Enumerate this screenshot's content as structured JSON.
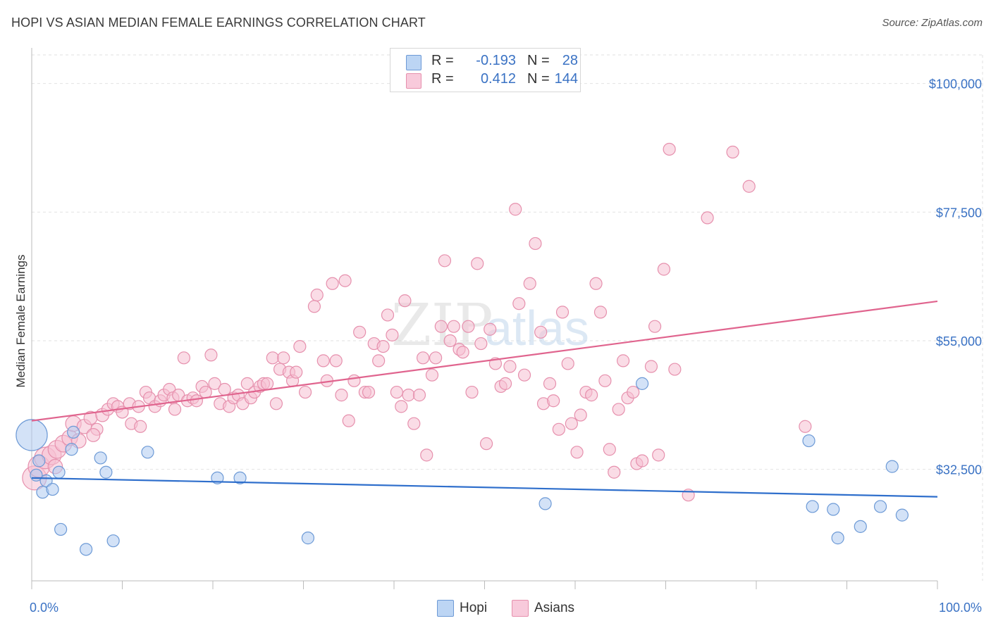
{
  "header": {
    "title": "HOPI VS ASIAN MEDIAN FEMALE EARNINGS CORRELATION CHART",
    "source": "Source: ZipAtlas.com"
  },
  "legend": {
    "hopi": {
      "r_label": "R =",
      "r_value": "-0.193",
      "n_label": "N =",
      "n_value": "28"
    },
    "asians": {
      "r_label": "R =",
      "r_value": "0.412",
      "n_label": "N =",
      "n_value": "144"
    }
  },
  "bottom_legend": {
    "hopi": "Hopi",
    "asians": "Asians"
  },
  "colors": {
    "hopi_fill": "#aecbf0",
    "hopi_stroke": "#6d9ad6",
    "hopi_line": "#2f6fcc",
    "asian_fill": "#f6bfd1",
    "asian_stroke": "#e690ad",
    "asian_line": "#e0648e",
    "tick_label": "#3a72c4",
    "grid": "#e2e2e2"
  },
  "chart_data": {
    "type": "scatter",
    "title": "HOPI VS ASIAN MEDIAN FEMALE EARNINGS CORRELATION CHART",
    "xlabel": "",
    "ylabel": "Median Female Earnings",
    "xlim": [
      0,
      100
    ],
    "ylim": [
      13000,
      105000
    ],
    "x_tick_labels": [
      "0.0%",
      "100.0%"
    ],
    "y_ticks": [
      32500,
      55000,
      77500,
      100000
    ],
    "y_tick_labels": [
      "$32,500",
      "$55,000",
      "$77,500",
      "$100,000"
    ],
    "watermark": "ZIPatlas",
    "series": [
      {
        "name": "Hopi",
        "trend": {
          "x": [
            0,
            100
          ],
          "y": [
            31000,
            27700
          ]
        },
        "points": [
          [
            0,
            38500,
            2.6
          ],
          [
            0.8,
            34000,
            1
          ],
          [
            1.2,
            28500,
            1
          ],
          [
            1.6,
            30500,
            1
          ],
          [
            2.3,
            29000,
            1
          ],
          [
            3,
            32000,
            1
          ],
          [
            3.2,
            22000,
            1
          ],
          [
            4.4,
            36000,
            1
          ],
          [
            4.6,
            39000,
            1
          ],
          [
            6,
            18500,
            1
          ],
          [
            7.6,
            34500,
            1
          ],
          [
            8.2,
            32000,
            1
          ],
          [
            9,
            20000,
            1
          ],
          [
            12.8,
            35500,
            1
          ],
          [
            20.5,
            31000,
            1
          ],
          [
            23,
            31000,
            1
          ],
          [
            30.5,
            20500,
            1
          ],
          [
            56.7,
            26500,
            1
          ],
          [
            67.4,
            47500,
            1
          ],
          [
            85.8,
            37500,
            1
          ],
          [
            86.2,
            26000,
            1
          ],
          [
            88.5,
            25500,
            1
          ],
          [
            89,
            20500,
            1
          ],
          [
            91.5,
            22500,
            1
          ],
          [
            93.7,
            26000,
            1
          ],
          [
            95,
            33000,
            1
          ],
          [
            96.1,
            24500,
            1
          ],
          [
            0.5,
            31500,
            1
          ]
        ]
      },
      {
        "name": "Asians",
        "trend": {
          "x": [
            0,
            100
          ],
          "y": [
            41000,
            61900
          ]
        },
        "points": [
          [
            0.3,
            31000,
            2
          ],
          [
            0.8,
            33000,
            1.8
          ],
          [
            1.5,
            34500,
            1.8
          ],
          [
            2.2,
            35000,
            1.6
          ],
          [
            2.8,
            36000,
            1.5
          ],
          [
            3.5,
            37000,
            1.4
          ],
          [
            4.2,
            38000,
            1.3
          ],
          [
            4.6,
            40500,
            1.3
          ],
          [
            5.2,
            37500,
            1.2
          ],
          [
            5.8,
            40000,
            1.2
          ],
          [
            6.5,
            41500,
            1.1
          ],
          [
            7.2,
            39500,
            1
          ],
          [
            7.8,
            42000,
            1.1
          ],
          [
            8.4,
            43000,
            1
          ],
          [
            9,
            44000,
            1
          ],
          [
            9.5,
            43500,
            1
          ],
          [
            10,
            42500,
            1
          ],
          [
            10.8,
            44000,
            1
          ],
          [
            11,
            40500,
            1
          ],
          [
            12,
            40000,
            1
          ],
          [
            12.6,
            46000,
            1
          ],
          [
            13,
            45000,
            1
          ],
          [
            13.6,
            43500,
            1
          ],
          [
            14.2,
            44500,
            1
          ],
          [
            14.6,
            45500,
            1
          ],
          [
            15.2,
            46500,
            1
          ],
          [
            15.6,
            45000,
            1
          ],
          [
            16.2,
            45500,
            1
          ],
          [
            16.8,
            52000,
            1
          ],
          [
            17.2,
            44500,
            1
          ],
          [
            17.8,
            45000,
            1
          ],
          [
            18.2,
            44500,
            1
          ],
          [
            18.8,
            47000,
            1
          ],
          [
            19.2,
            46000,
            1
          ],
          [
            19.8,
            52500,
            1
          ],
          [
            20.2,
            47500,
            1
          ],
          [
            20.8,
            44000,
            1
          ],
          [
            21.3,
            46500,
            1
          ],
          [
            21.8,
            43500,
            1
          ],
          [
            22.3,
            45000,
            1
          ],
          [
            22.8,
            45500,
            1
          ],
          [
            23.3,
            44000,
            1
          ],
          [
            23.8,
            47500,
            1
          ],
          [
            24.2,
            45000,
            1
          ],
          [
            24.6,
            46000,
            1
          ],
          [
            25.2,
            47000,
            1
          ],
          [
            25.6,
            47500,
            1
          ],
          [
            26,
            47500,
            1
          ],
          [
            26.6,
            52000,
            1
          ],
          [
            27,
            44000,
            1
          ],
          [
            27.4,
            50000,
            1
          ],
          [
            27.8,
            52000,
            1
          ],
          [
            28.4,
            49500,
            1
          ],
          [
            28.8,
            48000,
            1
          ],
          [
            29.2,
            49500,
            1
          ],
          [
            29.6,
            54000,
            1
          ],
          [
            30.2,
            46000,
            1
          ],
          [
            31.2,
            61000,
            1
          ],
          [
            31.5,
            63000,
            1
          ],
          [
            32.2,
            51500,
            1
          ],
          [
            32.6,
            48000,
            1
          ],
          [
            33.2,
            65000,
            1
          ],
          [
            33.6,
            51500,
            1
          ],
          [
            34.2,
            45500,
            1
          ],
          [
            34.6,
            65500,
            1
          ],
          [
            35,
            41000,
            1
          ],
          [
            35.6,
            48000,
            1
          ],
          [
            36.2,
            56500,
            1
          ],
          [
            36.8,
            46000,
            1
          ],
          [
            37.2,
            46000,
            1
          ],
          [
            37.8,
            54500,
            1
          ],
          [
            38.3,
            51500,
            1
          ],
          [
            38.8,
            54000,
            1
          ],
          [
            39.3,
            59500,
            1
          ],
          [
            39.8,
            56000,
            1
          ],
          [
            40.3,
            46000,
            1
          ],
          [
            40.8,
            43500,
            1
          ],
          [
            41.2,
            62000,
            1
          ],
          [
            41.6,
            45500,
            1
          ],
          [
            42.2,
            40500,
            1
          ],
          [
            42.8,
            45500,
            1
          ],
          [
            43.2,
            52000,
            1
          ],
          [
            43.6,
            35000,
            1
          ],
          [
            44.2,
            49000,
            1
          ],
          [
            44.6,
            52000,
            1
          ],
          [
            45.2,
            57500,
            1
          ],
          [
            45.6,
            69000,
            1
          ],
          [
            46.2,
            55000,
            1
          ],
          [
            46.6,
            57500,
            1
          ],
          [
            47.2,
            53500,
            1
          ],
          [
            47.6,
            53000,
            1
          ],
          [
            48.2,
            57500,
            1
          ],
          [
            48.6,
            46000,
            1
          ],
          [
            49.2,
            68500,
            1
          ],
          [
            49.6,
            54500,
            1
          ],
          [
            50.2,
            37000,
            1
          ],
          [
            50.6,
            57000,
            1
          ],
          [
            51.2,
            51000,
            1
          ],
          [
            51.8,
            47000,
            1
          ],
          [
            52.3,
            47500,
            1
          ],
          [
            52.8,
            50500,
            1
          ],
          [
            53.4,
            78000,
            1
          ],
          [
            53.8,
            61500,
            1
          ],
          [
            54.4,
            49000,
            1
          ],
          [
            55,
            65000,
            1
          ],
          [
            55.6,
            72000,
            1
          ],
          [
            56.2,
            56500,
            1
          ],
          [
            56.5,
            44000,
            1
          ],
          [
            57.2,
            47500,
            1
          ],
          [
            57.6,
            44500,
            1
          ],
          [
            58.2,
            39500,
            1
          ],
          [
            58.6,
            60000,
            1
          ],
          [
            59.2,
            51000,
            1
          ],
          [
            59.6,
            40500,
            1
          ],
          [
            60.2,
            35500,
            1
          ],
          [
            60.6,
            42000,
            1
          ],
          [
            61.2,
            46000,
            1
          ],
          [
            61.8,
            45500,
            1
          ],
          [
            62.3,
            65000,
            1
          ],
          [
            62.8,
            60000,
            1
          ],
          [
            63.3,
            48000,
            1
          ],
          [
            63.8,
            36000,
            1
          ],
          [
            64.3,
            32000,
            1
          ],
          [
            64.8,
            43000,
            1
          ],
          [
            65.3,
            51500,
            1
          ],
          [
            65.8,
            45000,
            1
          ],
          [
            66.4,
            46000,
            1
          ],
          [
            66.8,
            33500,
            1
          ],
          [
            67.4,
            34000,
            1
          ],
          [
            68.4,
            50500,
            1
          ],
          [
            68.8,
            57500,
            1
          ],
          [
            69.2,
            35000,
            1
          ],
          [
            69.8,
            67500,
            1
          ],
          [
            70.4,
            88500,
            1
          ],
          [
            71,
            50000,
            1
          ],
          [
            72.5,
            28000,
            1
          ],
          [
            74.6,
            76500,
            1
          ],
          [
            77.4,
            88000,
            1
          ],
          [
            79.2,
            82000,
            1
          ],
          [
            85.4,
            40000,
            1
          ],
          [
            2.6,
            33000,
            1.2
          ],
          [
            6.8,
            38500,
            1.1
          ],
          [
            11.8,
            43500,
            1
          ],
          [
            15.8,
            43000,
            1
          ]
        ]
      }
    ]
  }
}
